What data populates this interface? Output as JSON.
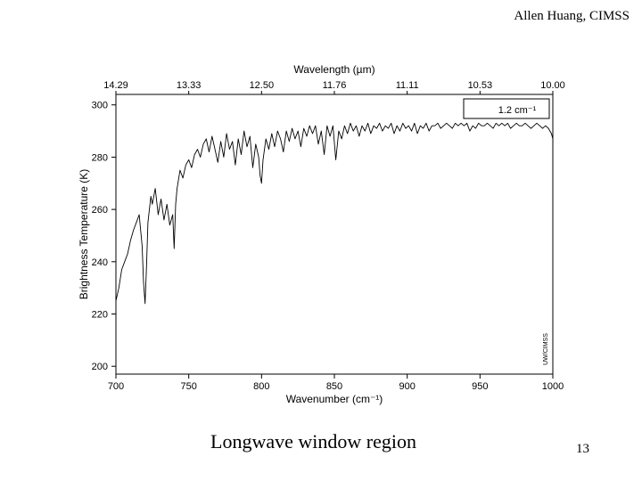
{
  "header": {
    "author": "Allen Huang, CIMSS"
  },
  "footer": {
    "caption": "Longwave window region",
    "page_number": "13"
  },
  "chart_data": {
    "type": "line",
    "title": "",
    "xlabel": "Wavenumber (cm⁻¹)",
    "ylabel": "Brightness Temperature (K)",
    "x2label": "Wavelength (µm)",
    "xlim": [
      700,
      1000
    ],
    "ylim": [
      197,
      304
    ],
    "xticks": [
      700,
      750,
      800,
      850,
      900,
      950,
      1000
    ],
    "yticks": [
      200,
      220,
      240,
      260,
      280,
      300
    ],
    "x2ticks": [
      "14.29",
      "13.33",
      "12.50",
      "11.76",
      "11.11",
      "10.53",
      "10.00"
    ],
    "legend": {
      "text": "1.2 cm⁻¹",
      "position": "top-right"
    },
    "watermark": "UW/CIMSS",
    "grid": false,
    "series": [
      {
        "x": [
          700,
          702,
          704,
          706,
          708,
          710,
          712,
          714,
          716,
          718,
          719,
          720,
          721,
          722,
          724,
          725,
          727,
          729,
          731,
          733,
          735,
          737,
          739,
          740,
          741,
          742,
          744,
          746,
          748,
          750,
          752,
          754,
          756,
          758,
          760,
          762,
          764,
          766,
          768,
          770,
          772,
          774,
          776,
          778,
          780,
          782,
          784,
          786,
          788,
          790,
          792,
          794,
          796,
          798,
          799,
          800,
          801,
          803,
          805,
          807,
          809,
          811,
          813,
          815,
          817,
          819,
          821,
          823,
          825,
          827,
          829,
          831,
          833,
          835,
          837,
          839,
          841,
          843,
          845,
          847,
          849,
          851,
          853,
          855,
          857,
          859,
          861,
          863,
          865,
          867,
          869,
          871,
          873,
          875,
          877,
          879,
          881,
          883,
          885,
          887,
          889,
          891,
          893,
          895,
          897,
          899,
          901,
          903,
          905,
          907,
          909,
          911,
          913,
          915,
          917,
          919,
          921,
          923,
          925,
          927,
          929,
          931,
          933,
          935,
          937,
          939,
          941,
          943,
          945,
          947,
          949,
          951,
          953,
          955,
          957,
          959,
          961,
          963,
          965,
          967,
          969,
          971,
          973,
          975,
          977,
          979,
          981,
          983,
          985,
          987,
          989,
          991,
          993,
          995,
          997,
          999,
          1000
        ],
        "y": [
          225,
          230,
          237,
          240,
          243,
          248,
          252,
          255,
          258,
          246,
          232,
          224,
          238,
          255,
          265,
          262,
          268,
          258,
          264,
          256,
          262,
          254,
          258,
          245,
          262,
          268,
          275,
          272,
          277,
          279,
          276,
          281,
          283,
          280,
          285,
          287,
          282,
          288,
          283,
          278,
          286,
          280,
          289,
          283,
          286,
          277,
          287,
          281,
          290,
          284,
          288,
          276,
          285,
          280,
          273,
          270,
          279,
          287,
          283,
          289,
          284,
          290,
          287,
          282,
          290,
          286,
          291,
          287,
          290,
          284,
          291,
          288,
          292,
          289,
          292,
          285,
          290,
          281,
          292,
          288,
          292,
          279,
          290,
          287,
          292,
          289,
          293,
          290,
          292,
          288,
          292,
          290,
          293,
          289,
          292,
          291,
          293,
          290,
          292,
          291,
          293,
          289,
          292,
          290,
          293,
          291,
          292,
          290,
          293,
          289,
          292,
          291,
          293,
          290,
          292,
          292,
          293,
          291,
          292,
          293,
          292,
          291,
          293,
          292,
          293,
          292,
          293,
          290,
          292,
          291,
          293,
          292,
          292,
          293,
          292,
          291,
          293,
          292,
          293,
          292,
          293,
          291,
          292,
          293,
          292,
          292,
          293,
          292,
          291,
          292,
          293,
          292,
          291,
          292,
          291,
          289,
          287
        ]
      }
    ]
  }
}
